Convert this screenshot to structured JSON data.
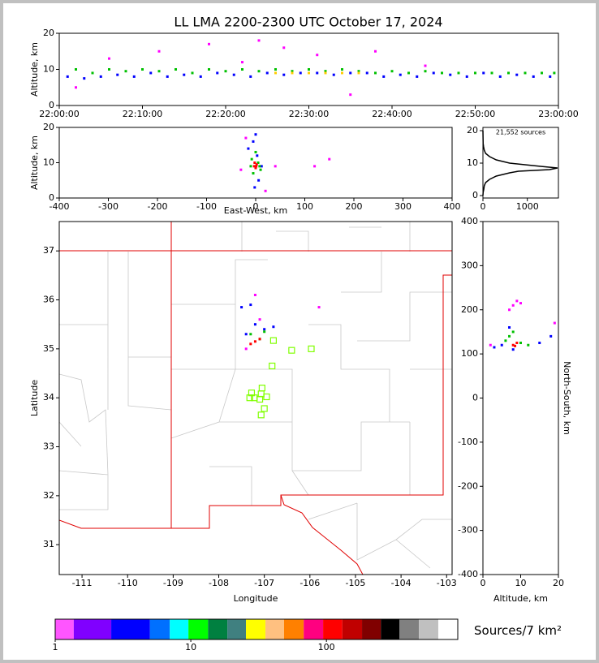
{
  "chart_data": [
    {
      "type": "scatter",
      "title": "LL LMA 2200-2300 UTC October 17, 2024",
      "ylabel": "Altitude, km",
      "xlim": [
        0,
        60
      ],
      "xticks": [
        {
          "value": 0,
          "label": "22:00:00"
        },
        {
          "value": 10,
          "label": "22:10:00"
        },
        {
          "value": 20,
          "label": "22:20:00"
        },
        {
          "value": 30,
          "label": "22:30:00"
        },
        {
          "value": 40,
          "label": "22:40:00"
        },
        {
          "value": 50,
          "label": "22:50:00"
        },
        {
          "value": 60,
          "label": "23:00:00"
        }
      ],
      "ylim": [
        0,
        20
      ],
      "yticks": [
        0,
        10,
        20
      ],
      "series": [
        {
          "color": "#0000ff",
          "x": [
            1,
            3,
            5,
            7,
            9,
            11,
            13,
            15,
            17,
            19,
            21,
            23,
            25,
            27,
            29,
            31,
            33,
            35,
            37,
            39,
            41,
            43,
            45,
            47,
            49,
            51,
            53,
            55,
            57,
            59
          ],
          "values": [
            8,
            7.5,
            8,
            8.5,
            8,
            9,
            8,
            8.5,
            8,
            9,
            8.5,
            8,
            9,
            8.5,
            9,
            9,
            8.5,
            9,
            9,
            8,
            8.5,
            8,
            9,
            8.5,
            8,
            9,
            8,
            8.5,
            8,
            8
          ]
        },
        {
          "color": "#00c000",
          "x": [
            2,
            4,
            6,
            8,
            10,
            12,
            14,
            16,
            18,
            20,
            22,
            24,
            26,
            28,
            30,
            32,
            34,
            36,
            38,
            40,
            42,
            44,
            46,
            48,
            50,
            52,
            54,
            56,
            58,
            59.5
          ],
          "values": [
            10,
            9,
            10,
            9.5,
            10,
            9.5,
            10,
            9,
            10,
            9.5,
            10,
            9.5,
            10,
            9.5,
            10,
            9.5,
            10,
            9.5,
            9,
            9.5,
            9,
            9.5,
            9,
            9,
            9,
            9,
            9,
            9,
            9,
            9
          ]
        },
        {
          "color": "#ffcc00",
          "x": [
            26,
            28,
            30,
            32,
            34,
            36
          ],
          "values": [
            9,
            9,
            9,
            9,
            9,
            9
          ]
        },
        {
          "color": "#ff00ff",
          "x": [
            2,
            6,
            12,
            18,
            22,
            24,
            27,
            31,
            35,
            38,
            44
          ],
          "values": [
            5,
            13,
            15,
            17,
            12,
            18,
            16,
            14,
            3,
            15,
            11
          ]
        }
      ]
    },
    {
      "type": "scatter",
      "xlabel": "East-West, km",
      "ylabel": "Altitude, km",
      "xlim": [
        -400,
        400
      ],
      "xticks": [
        -400,
        -300,
        -200,
        -100,
        0,
        100,
        200,
        300,
        400
      ],
      "ylim": [
        0,
        20
      ],
      "yticks": [
        0,
        10,
        20
      ],
      "series": [
        {
          "color": "#ff00ff",
          "x": [
            -20,
            40,
            120,
            150,
            -30,
            20
          ],
          "values": [
            17,
            9,
            9,
            11,
            8,
            2
          ]
        },
        {
          "color": "#0000ff",
          "x": [
            -15,
            -5,
            6,
            12,
            -2,
            0,
            3
          ],
          "values": [
            14,
            16,
            5,
            9,
            3,
            18,
            12
          ]
        },
        {
          "color": "#00c000",
          "x": [
            -8,
            5,
            -5,
            8,
            0,
            -10,
            10
          ],
          "values": [
            11,
            10,
            7,
            9,
            13,
            9,
            8
          ]
        },
        {
          "color": "#ff0000",
          "x": [
            -3,
            0,
            2,
            -2,
            1
          ],
          "values": [
            9,
            8.5,
            9.5,
            10,
            9
          ]
        }
      ]
    },
    {
      "type": "line",
      "annotation": "21,552 sources",
      "orientation": "horizontal",
      "xlim": [
        0,
        1700
      ],
      "xticks": [
        0,
        1000
      ],
      "ylim": [
        -0.75,
        21
      ],
      "yticks": [
        0,
        10,
        20
      ],
      "x": [
        0,
        1,
        2,
        3,
        4,
        5,
        6,
        7,
        7.5,
        8,
        8.5,
        9,
        10,
        11,
        12,
        13,
        14,
        15,
        16,
        20
      ],
      "values": [
        0,
        5,
        20,
        30,
        60,
        150,
        300,
        600,
        800,
        1500,
        1680,
        1300,
        600,
        300,
        150,
        60,
        30,
        15,
        5,
        0
      ],
      "color": "#000000"
    },
    {
      "type": "scatter",
      "xlabel": "Longitude",
      "ylabel": "Latitude",
      "xlim": [
        -111.5,
        -102.88
      ],
      "xticks": [
        -111,
        -110,
        -109,
        -108,
        -107,
        -106,
        -105,
        -104,
        -103
      ],
      "ylim": [
        30.39,
        37.6
      ],
      "yticks": [
        31,
        32,
        33,
        34,
        35,
        36,
        37
      ],
      "series": [
        {
          "color": "#ff00ff",
          "x": [
            -107.2,
            -105.8,
            -107.1,
            -107.4
          ],
          "values": [
            36.1,
            35.85,
            35.6,
            35.0
          ]
        },
        {
          "color": "#0000ff",
          "x": [
            -107.4,
            -107.2,
            -107.0,
            -106.8,
            -107.3,
            -107.5
          ],
          "values": [
            35.3,
            35.5,
            35.4,
            35.45,
            35.9,
            35.85
          ]
        },
        {
          "color": "#00c000",
          "x": [
            -107.3,
            -107.1,
            -107.0
          ],
          "values": [
            35.3,
            35.2,
            35.35
          ]
        },
        {
          "color": "#ff0000",
          "x": [
            -107.2,
            -107.1,
            -107.3
          ],
          "values": [
            35.15,
            35.2,
            35.1
          ]
        },
        {
          "color": "#80ff00",
          "marker": "square-open",
          "x": [
            -106.8,
            -106.4,
            -105.97,
            -106.83,
            -107.05,
            -107.07,
            -107.22,
            -107.28,
            -107.1,
            -107.32,
            -106.95,
            -107.0,
            -107.07
          ],
          "values": [
            35.17,
            34.97,
            35.0,
            34.65,
            34.2,
            34.08,
            34.0,
            34.1,
            33.97,
            34.0,
            34.02,
            33.78,
            33.65
          ]
        }
      ]
    },
    {
      "type": "scatter",
      "xlabel": "Altitude, km",
      "ylabel": "North-South, km",
      "ylabel_side": "right",
      "xlim": [
        0,
        20
      ],
      "xticks": [
        0,
        10,
        20
      ],
      "ylim": [
        -400,
        400
      ],
      "yticks": [
        -400,
        -300,
        -200,
        -100,
        0,
        100,
        200,
        300,
        400
      ],
      "series": [
        {
          "color": "#ff00ff",
          "x": [
            8,
            9,
            7,
            10,
            2,
            19
          ],
          "values": [
            210,
            220,
            200,
            215,
            120,
            170
          ]
        },
        {
          "color": "#0000ff",
          "x": [
            3,
            5,
            15,
            18,
            7,
            8
          ],
          "values": [
            115,
            120,
            125,
            140,
            160,
            110
          ]
        },
        {
          "color": "#00c000",
          "x": [
            6,
            7,
            10,
            12,
            8
          ],
          "values": [
            130,
            140,
            125,
            120,
            150
          ]
        },
        {
          "color": "#ff0000",
          "x": [
            8,
            9,
            8.5
          ],
          "values": [
            120,
            125,
            118
          ]
        }
      ]
    },
    {
      "type": "colorbar",
      "label": "Sources/7 km²",
      "log": true,
      "xlim": [
        1,
        930
      ],
      "xticks": [
        1,
        10,
        100
      ],
      "bounds": [
        1,
        1.37,
        2.59,
        5.0,
        7.0,
        9.6,
        13.4,
        18.6,
        25.5,
        35.5,
        48.7,
        68,
        94.5,
        131,
        183,
        252,
        346,
        481,
        668,
        930
      ],
      "colors": [
        "#ff55ff",
        "#8000ff",
        "#0000ff",
        "#0070ff",
        "#00ffff",
        "#00ff00",
        "#008040",
        "#408080",
        "#ffff00",
        "#ffc080",
        "#ff8000",
        "#ff0080",
        "#ff0000",
        "#c00000",
        "#800000",
        "#000000",
        "#808080",
        "#c0c0c0",
        "#ffffff"
      ]
    }
  ]
}
